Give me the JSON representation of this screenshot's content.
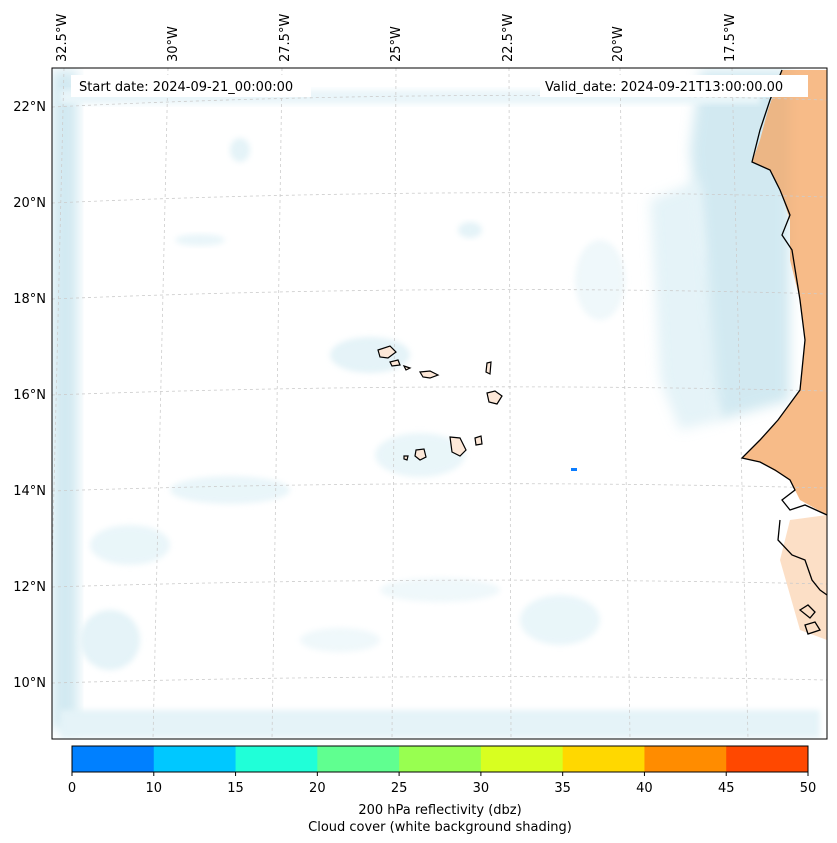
{
  "map": {
    "start_date_text": "Start date: 2024-09-21_00:00:00",
    "valid_date_text": "Valid_date: 2024-09-21T13:00:00.00",
    "lon_labels": [
      "32.5°W",
      "30°W",
      "27.5°W",
      "25°W",
      "22.5°W",
      "20°W",
      "17.5°W"
    ],
    "lat_labels": [
      "22°N",
      "20°N",
      "18°N",
      "16°N",
      "14°N",
      "12°N",
      "10°N"
    ],
    "region": "Cape Verde Islands and West African coast",
    "colors": {
      "cloud": "#add8e6",
      "land_reflectivity": "#f4a460",
      "coastline": "#000000",
      "gridline": "#cccccc",
      "island_fill": "#fde8d8",
      "echo": "#0a7cff"
    }
  },
  "colorbar": {
    "ticks": [
      "0",
      "10",
      "15",
      "20",
      "25",
      "30",
      "35",
      "40",
      "45",
      "50"
    ],
    "colors": [
      "#0080ff",
      "#00c8ff",
      "#20ffd8",
      "#60ff90",
      "#98ff50",
      "#d8ff20",
      "#ffd800",
      "#ff8c00",
      "#ff4800"
    ],
    "label_line1": "200 hPa reflectivity (dbz)",
    "label_line2": "Cloud cover (white background shading)"
  }
}
